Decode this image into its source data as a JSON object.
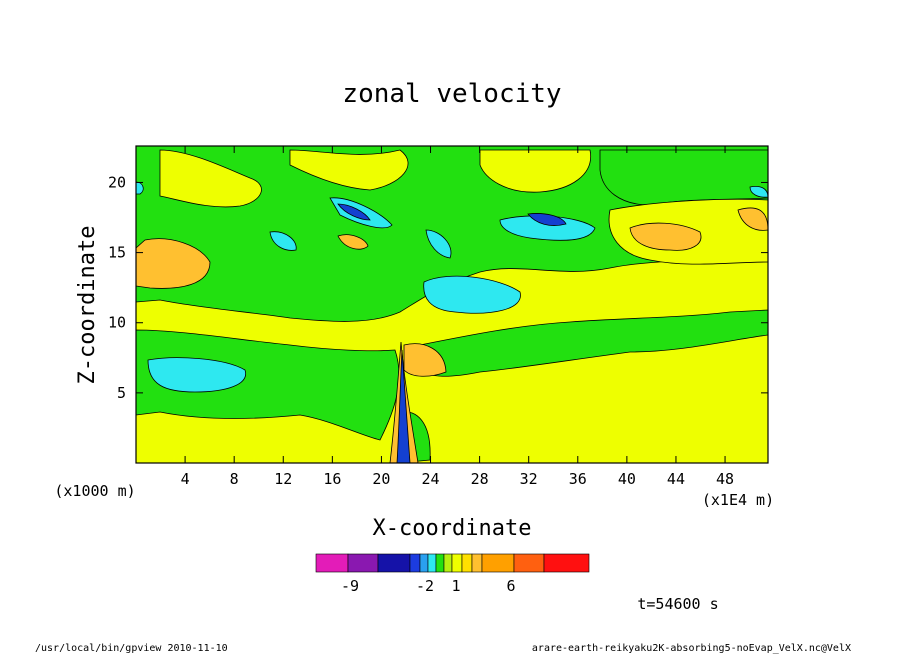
{
  "chart_data": {
    "type": "heatmap",
    "title": "zonal velocity",
    "xlabel": "X-coordinate",
    "ylabel": "Z-coordinate",
    "x_unit_note": "(x1E4 m)",
    "y_unit_note": "(x1000 m)",
    "xlim": [
      0,
      51.5
    ],
    "ylim": [
      0,
      22.6
    ],
    "x_ticks": [
      4,
      8,
      12,
      16,
      20,
      24,
      28,
      32,
      36,
      40,
      44,
      48
    ],
    "y_ticks": [
      5,
      10,
      15,
      20
    ],
    "x_tick_labels": [
      "4",
      "8",
      "12",
      "16",
      "20",
      "24",
      "28",
      "32",
      "36",
      "40",
      "44",
      "48"
    ],
    "y_tick_labels": [
      "5",
      "10",
      "15",
      "20"
    ],
    "colorbar_labels": [
      "-9",
      "-2",
      "1",
      "6"
    ],
    "colorbar_colors": [
      "#e31cb8",
      "#8a18b0",
      "#1512a8",
      "#1c3ce0",
      "#2aa0f0",
      "#2ee8f0",
      "#22e010",
      "#b6f010",
      "#eeff00",
      "#ffe000",
      "#ffc030",
      "#ffa000",
      "#ff6010",
      "#ff1010",
      "#ff8080",
      "#ffc0c0"
    ],
    "field_colors": {
      "strong_negative": "#1440d0",
      "negative": "#2ee8f0",
      "near_zero": "#22e010",
      "weak_positive": "#eeff00",
      "positive": "#ffc030"
    },
    "time_label": "t=54600 s"
  },
  "footer": {
    "left": "/usr/local/bin/gpview  2010-11-10",
    "right": "arare-earth-reikyaku2K-absorbing5-noEvap_VelX.nc@VelX"
  }
}
